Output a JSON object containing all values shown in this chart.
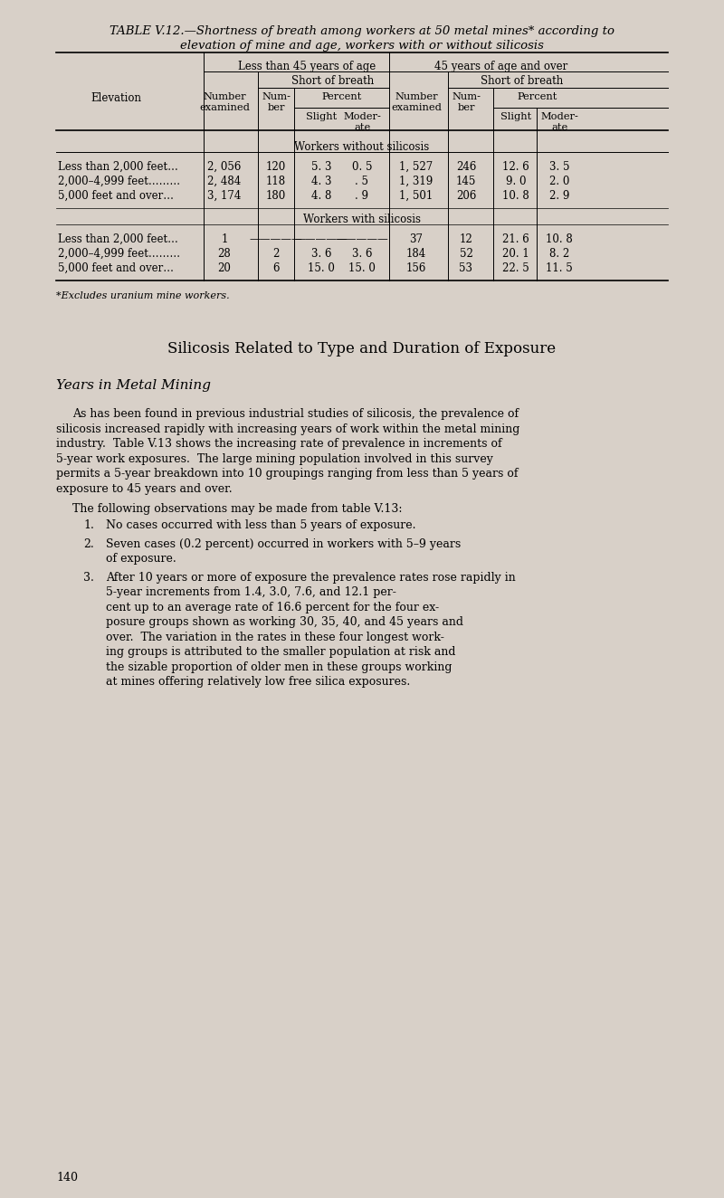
{
  "bg_color": "#d8d0c8",
  "title_line1": "TABLE V.12.—Shortness of breath among workers at 50 metal mines* according to",
  "title_line2": "elevation of mine and age, workers with or without silicosis",
  "table": {
    "col_headers": {
      "level1_left": "Less than 45 years of age",
      "level1_right": "45 years of age and over",
      "level2_left": "Short of breath",
      "level2_right": "Short of breath",
      "elevation": "Elevation",
      "num_examined_left": [
        "Number",
        "examined"
      ],
      "num_examined_right": [
        "Number",
        "examined"
      ],
      "number_left": [
        "Num-",
        "ber"
      ],
      "number_right": [
        "Num-",
        "ber"
      ],
      "percent_left": "Percent",
      "percent_right": "Percent",
      "slight_left": "Slight",
      "slight_right": "Slight",
      "moderate_left": [
        "Moder-",
        "ate"
      ],
      "moderate_right": [
        "Moder-",
        "ate"
      ]
    },
    "section1_header": "Workers without silicosis",
    "section2_header": "Workers with silicosis",
    "rows_no_silicosis": [
      [
        "Less than 2,000 feet…",
        "2, 056",
        "120",
        "5. 3",
        "0. 5",
        "1, 527",
        "246",
        "12. 6",
        "3. 5"
      ],
      [
        "2,000–4,999 feet………",
        "2, 484",
        "118",
        "4. 3",
        ". 5",
        "1, 319",
        "145",
        "9. 0",
        "2. 0"
      ],
      [
        "5,000 feet and over…",
        "3, 174",
        "180",
        "4. 8",
        ". 9",
        "1, 501",
        "206",
        "10. 8",
        "2. 9"
      ]
    ],
    "rows_with_silicosis": [
      [
        "Less than 2,000 feet…",
        "1",
        "—————",
        "—————",
        "—————",
        "37",
        "12",
        "21. 6",
        "10. 8"
      ],
      [
        "2,000–4,999 feet………",
        "28",
        "2",
        "3. 6",
        "3. 6",
        "184",
        "52",
        "20. 1",
        "8. 2"
      ],
      [
        "5,000 feet and over…",
        "20",
        "6",
        "15. 0",
        "15. 0",
        "156",
        "53",
        "22. 5",
        "11. 5"
      ]
    ]
  },
  "footnote": "*Excludes uranium mine workers.",
  "section_heading": "Silicosis Related to Type and Duration of Exposure",
  "subheading": "Years in Metal Mining",
  "paragraph1": "As has been found in previous industrial studies of silicosis, the prevalence of silicosis increased rapidly with increasing years of work within the metal mining industry.  Table V.13 shows the increasing rate of prevalence in increments of 5-year work exposures.  The large mining population involved in this survey permits a 5-year breakdown into 10 groupings ranging from less than 5 years of exposure to 45 years and over.",
  "paragraph2_intro": "The following observations may be made from table V.13:",
  "list_items": [
    "No cases occurred with less than 5 years of exposure.",
    "Seven cases (0.2 percent) occurred in workers with 5–9 years\nof exposure.",
    "After 10 years or more of exposure the prevalence rates rose rapidly in 5-year increments from 1.4, 3.0, 7.6, and 12.1 per-\ncent up to an average rate of 16.6 percent for the four ex-\nposure groups shown as working 30, 35, 40, and 45 years and\nover.  The variation in the rates in these four longest work-\ning groups is attributed to the smaller population at risk and\nthe sizable proportion of older men in these groups working\nat mines offering relatively low free silica exposures."
  ],
  "page_number": "140"
}
